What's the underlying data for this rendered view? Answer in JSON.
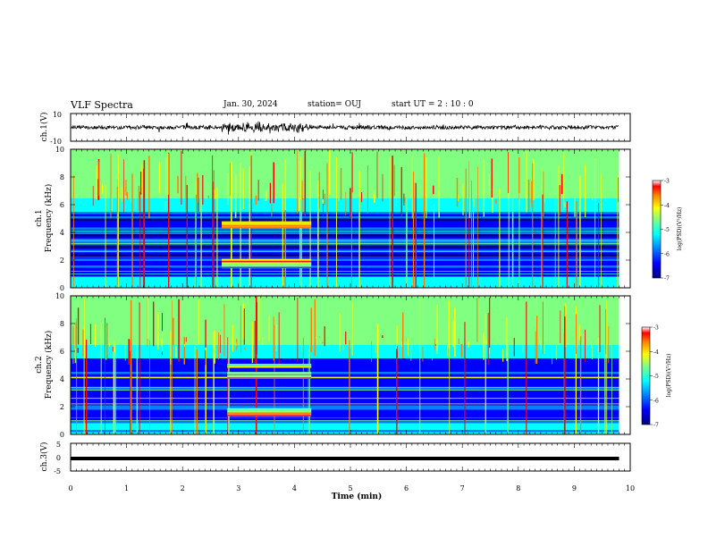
{
  "header": {
    "title": "VLF Spectra",
    "date": "Jan. 30, 2024",
    "station": "station= OUJ",
    "start_ut": "start  UT =   2 : 10 : 0"
  },
  "colors": {
    "colormap": [
      "#000080",
      "#0000ff",
      "#0080ff",
      "#00ffff",
      "#80ff80",
      "#ffff00",
      "#ff8000",
      "#ff0000",
      "#ffffff"
    ]
  },
  "chart_data": [
    {
      "type": "line",
      "panel": "ch1-waveform",
      "ylabel": "ch.1(V)",
      "ylim": [
        -10,
        10
      ],
      "ytick_labels": [
        "10",
        "-10"
      ],
      "description_of_signal": "noisy trace with burst",
      "burst_minutes": [
        2.7,
        4.3
      ],
      "x_range_min": [
        0,
        9.8
      ]
    },
    {
      "type": "heatmap",
      "panel": "ch1-spectrogram",
      "ylabel": "ch.1\nFrequency (kHz)",
      "ylabel_lines": [
        "ch.1",
        "Frequency (kHz)"
      ],
      "ylim_khz": [
        0,
        10
      ],
      "ytick_labels": [
        "0",
        "2",
        "4",
        "6",
        "8",
        "10"
      ],
      "emission_bands_khz": [
        [
          1.4,
          2.1
        ],
        [
          4.3,
          4.8
        ]
      ],
      "emission_minutes": [
        2.7,
        4.3
      ],
      "colorbar": {
        "label": "log(PSD)(V²/Hz)",
        "range": [
          -7,
          -3
        ],
        "tick_labels": [
          "-3",
          "-4",
          "-5",
          "-6",
          "-7"
        ]
      }
    },
    {
      "type": "heatmap",
      "panel": "ch2-spectrogram",
      "ylabel": "ch.2\nFrequency (kHz)",
      "ylabel_lines": [
        "ch.2",
        "Frequency (kHz)"
      ],
      "ylim_khz": [
        0,
        10
      ],
      "ytick_labels": [
        "0",
        "2",
        "4",
        "6",
        "8",
        "10"
      ],
      "emission_bands_khz": [
        [
          1.3,
          1.9
        ],
        [
          4.0,
          4.5
        ],
        [
          4.8,
          5.1
        ]
      ],
      "emission_minutes": [
        2.8,
        4.3
      ],
      "colorbar": {
        "label": "log(PSD)(V²/Hz)",
        "range": [
          -7,
          -3
        ],
        "tick_labels": [
          "-3",
          "-4",
          "-5",
          "-6",
          "-7"
        ]
      }
    },
    {
      "type": "line",
      "panel": "ch3-waveform",
      "ylabel": "ch.3(V)",
      "ylim": [
        -5,
        5
      ],
      "ytick_labels": [
        "5",
        "0",
        "-5"
      ],
      "constant_level_v": -0.5,
      "x_range_min": [
        0,
        9.8
      ]
    }
  ],
  "xaxis": {
    "label": "Time  (min)",
    "range": [
      0,
      10
    ],
    "tick_labels": [
      "0",
      "1",
      "2",
      "3",
      "4",
      "5",
      "6",
      "7",
      "8",
      "9",
      "10"
    ]
  }
}
